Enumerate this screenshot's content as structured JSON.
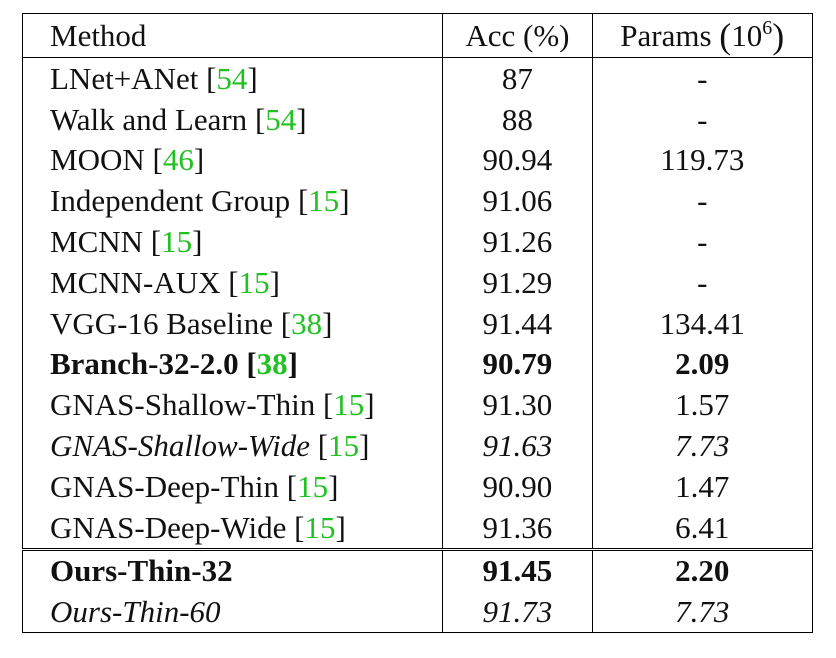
{
  "table": {
    "headers": {
      "method": "Method",
      "acc": "Acc (%)",
      "params_label": "Params",
      "params_base": "10",
      "params_exp": "6"
    },
    "rows": [
      {
        "method": "LNet+ANet",
        "ref": "54",
        "acc": "87",
        "params": "-",
        "style": "normal"
      },
      {
        "method": "Walk and Learn",
        "ref": "54",
        "acc": "88",
        "params": "-",
        "style": "normal"
      },
      {
        "method": "MOON",
        "ref": "46",
        "acc": "90.94",
        "params": "119.73",
        "style": "normal"
      },
      {
        "method": "Independent Group",
        "ref": "15",
        "acc": "91.06",
        "params": "-",
        "style": "normal"
      },
      {
        "method": "MCNN",
        "ref": "15",
        "acc": "91.26",
        "params": "-",
        "style": "normal"
      },
      {
        "method": "MCNN-AUX",
        "ref": "15",
        "acc": "91.29",
        "params": "-",
        "style": "normal"
      },
      {
        "method": "VGG-16 Baseline",
        "ref": "38",
        "acc": "91.44",
        "params": "134.41",
        "style": "normal"
      },
      {
        "method": "Branch-32-2.0",
        "ref": "38",
        "acc": "90.79",
        "params": "2.09",
        "style": "bold"
      },
      {
        "method": "GNAS-Shallow-Thin",
        "ref": "15",
        "acc": "91.30",
        "params": "1.57",
        "style": "normal"
      },
      {
        "method": "GNAS-Shallow-Wide",
        "ref": "15",
        "acc": "91.63",
        "params": "7.73",
        "style": "italic"
      },
      {
        "method": "GNAS-Deep-Thin",
        "ref": "15",
        "acc": "90.90",
        "params": "1.47",
        "style": "normal"
      },
      {
        "method": "GNAS-Deep-Wide",
        "ref": "15",
        "acc": "91.36",
        "params": "6.41",
        "style": "normal"
      },
      {
        "method": "Ours-Thin-32",
        "ref": "",
        "acc": "91.45",
        "params": "2.20",
        "style": "bold"
      },
      {
        "method": "Ours-Thin-60",
        "ref": "",
        "acc": "91.73",
        "params": "7.73",
        "style": "italic"
      }
    ]
  },
  "colors": {
    "citation": "#22c122",
    "text": "#111111",
    "rule": "#000000"
  }
}
